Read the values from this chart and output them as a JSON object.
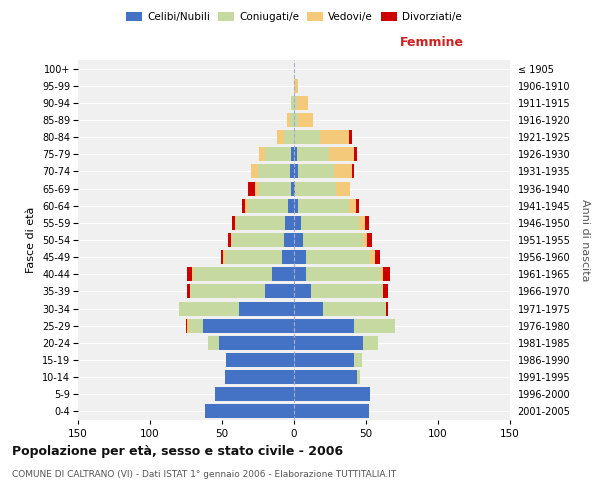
{
  "age_groups": [
    "0-4",
    "5-9",
    "10-14",
    "15-19",
    "20-24",
    "25-29",
    "30-34",
    "35-39",
    "40-44",
    "45-49",
    "50-54",
    "55-59",
    "60-64",
    "65-69",
    "70-74",
    "75-79",
    "80-84",
    "85-89",
    "90-94",
    "95-99",
    "100+"
  ],
  "birth_years": [
    "2001-2005",
    "1996-2000",
    "1991-1995",
    "1986-1990",
    "1981-1985",
    "1976-1980",
    "1971-1975",
    "1966-1970",
    "1961-1965",
    "1956-1960",
    "1951-1955",
    "1946-1950",
    "1941-1945",
    "1936-1940",
    "1931-1935",
    "1926-1930",
    "1921-1925",
    "1916-1920",
    "1911-1915",
    "1906-1910",
    "≤ 1905"
  ],
  "male_celibi": [
    62,
    55,
    48,
    47,
    52,
    63,
    38,
    20,
    15,
    8,
    7,
    6,
    4,
    2,
    3,
    2,
    0,
    0,
    0,
    0,
    0
  ],
  "male_coniugati": [
    0,
    0,
    0,
    0,
    8,
    10,
    42,
    52,
    55,
    40,
    36,
    34,
    28,
    22,
    22,
    18,
    7,
    3,
    2,
    0,
    0
  ],
  "male_vedovi": [
    0,
    0,
    0,
    0,
    0,
    1,
    0,
    0,
    1,
    1,
    1,
    1,
    2,
    3,
    5,
    4,
    5,
    2,
    0,
    0,
    0
  ],
  "male_divorziati": [
    0,
    0,
    0,
    0,
    0,
    1,
    0,
    2,
    3,
    2,
    2,
    2,
    2,
    5,
    0,
    0,
    0,
    0,
    0,
    0,
    0
  ],
  "female_celibi": [
    52,
    53,
    44,
    42,
    48,
    42,
    20,
    12,
    8,
    8,
    6,
    5,
    3,
    1,
    3,
    2,
    0,
    0,
    0,
    0,
    0
  ],
  "female_coniugati": [
    0,
    0,
    2,
    5,
    10,
    28,
    44,
    50,
    52,
    45,
    42,
    40,
    35,
    28,
    25,
    22,
    18,
    3,
    2,
    1,
    0
  ],
  "female_vedovi": [
    0,
    0,
    0,
    0,
    0,
    0,
    0,
    0,
    2,
    3,
    3,
    4,
    5,
    10,
    12,
    18,
    20,
    10,
    8,
    2,
    0
  ],
  "female_divorziati": [
    0,
    0,
    0,
    0,
    0,
    0,
    1,
    3,
    5,
    4,
    3,
    3,
    2,
    0,
    2,
    2,
    2,
    0,
    0,
    0,
    0
  ],
  "color_celibi": "#4472C4",
  "color_coniugati": "#c5d9a0",
  "color_vedovi": "#f5c97a",
  "color_divorziati": "#cc0000",
  "title": "Popolazione per età, sesso e stato civile - 2006",
  "subtitle": "COMUNE DI CALTRANO (VI) - Dati ISTAT 1° gennaio 2006 - Elaborazione TUTTITALIA.IT",
  "xlabel_right": "Femmine",
  "ylabel_left": "Fasce di età",
  "ylabel_right": "Anni di nascita",
  "xlim": 150,
  "bg_color": "#ffffff",
  "plot_bg": "#f0f0f0",
  "grid_color": "#cccccc"
}
